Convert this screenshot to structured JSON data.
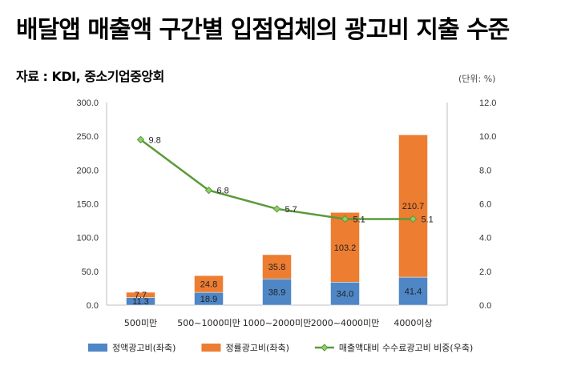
{
  "header": {
    "title": "배달앱 매출액 구간별 입점업체의 광고비 지출 수준",
    "source": "자료 : KDI, 중소기업중앙회",
    "unit": "(단위: %)"
  },
  "chart_data": {
    "type": "bar",
    "stacked": true,
    "categories": [
      "500미만",
      "500~1000미만",
      "1000~2000미만",
      "2000~4000미만",
      "4000이상"
    ],
    "series": [
      {
        "name": "정액광고비(좌축)",
        "axis": "left",
        "type": "bar",
        "color": "#4f86c6",
        "values": [
          11.3,
          18.9,
          38.9,
          34.0,
          41.4
        ],
        "labels": [
          "11.3",
          "18.9",
          "38.9",
          "34.0",
          "41.4"
        ]
      },
      {
        "name": "정률광고비(좌축)",
        "axis": "left",
        "type": "bar",
        "color": "#ed7d31",
        "values": [
          7.7,
          24.8,
          35.8,
          103.2,
          210.7
        ],
        "labels": [
          "7.7",
          "24.8",
          "35.8",
          "103.2",
          "210.7"
        ]
      },
      {
        "name": "매출액대비 수수료광고비 비중(우축)",
        "axis": "right",
        "type": "line",
        "color": "#5b9a3a",
        "values": [
          9.8,
          6.8,
          5.7,
          5.1,
          5.1
        ],
        "labels": [
          "9.8",
          "6.8",
          "5.7",
          "5.1",
          "5.1"
        ]
      }
    ],
    "y_left": {
      "min": 0,
      "max": 300,
      "step": 50,
      "ticks": [
        "0.0",
        "50.0",
        "100.0",
        "150.0",
        "200.0",
        "250.0",
        "300.0"
      ]
    },
    "y_right": {
      "min": 0,
      "max": 12,
      "step": 2,
      "ticks": [
        "0.0",
        "2.0",
        "4.0",
        "6.0",
        "8.0",
        "10.0",
        "12.0"
      ]
    },
    "grid": false,
    "legend_position": "bottom"
  }
}
